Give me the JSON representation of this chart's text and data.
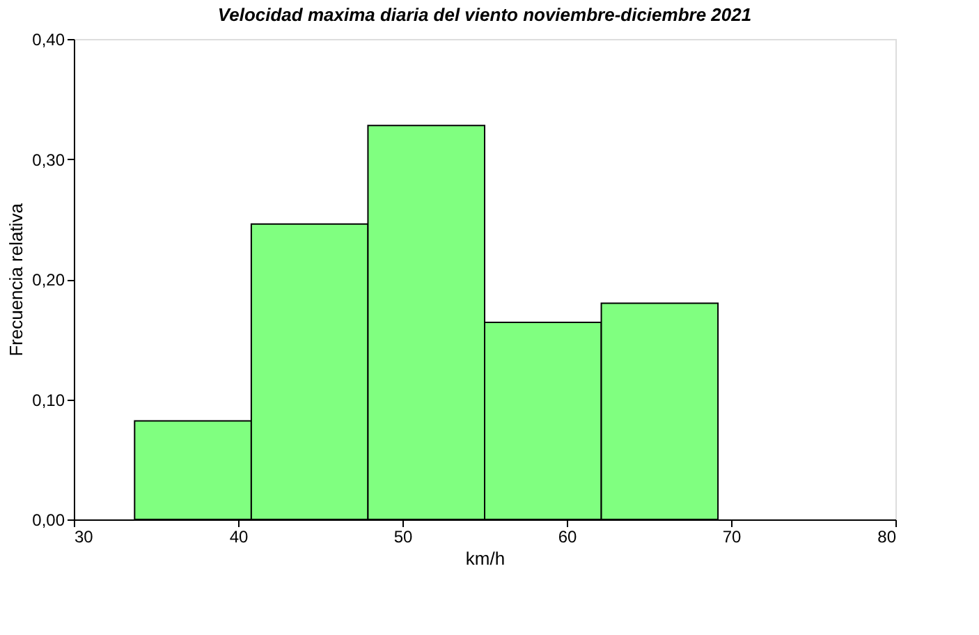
{
  "chart_data": {
    "type": "histogram",
    "title": "Velocidad maxima diaria del viento noviembre-diciembre 2021",
    "xlabel": "km/h",
    "ylabel": "Frecuencia relativa",
    "bins": [
      33.7,
      40.8,
      47.9,
      55.0,
      62.1,
      69.2
    ],
    "values": [
      0.082,
      0.246,
      0.328,
      0.164,
      0.18
    ],
    "color": "#80ff80",
    "xlim": [
      30,
      80
    ],
    "xticks": [
      30,
      40,
      50,
      60,
      70,
      80
    ],
    "ylim": [
      0,
      0.4
    ],
    "yticks": [
      {
        "value": 0,
        "label": "0,00"
      },
      {
        "value": 0.1,
        "label": "0,10"
      },
      {
        "value": 0.2,
        "label": "0,20"
      },
      {
        "value": 0.3,
        "label": "0,30"
      },
      {
        "value": 0.4,
        "label": "0,40"
      }
    ],
    "grid": false
  }
}
